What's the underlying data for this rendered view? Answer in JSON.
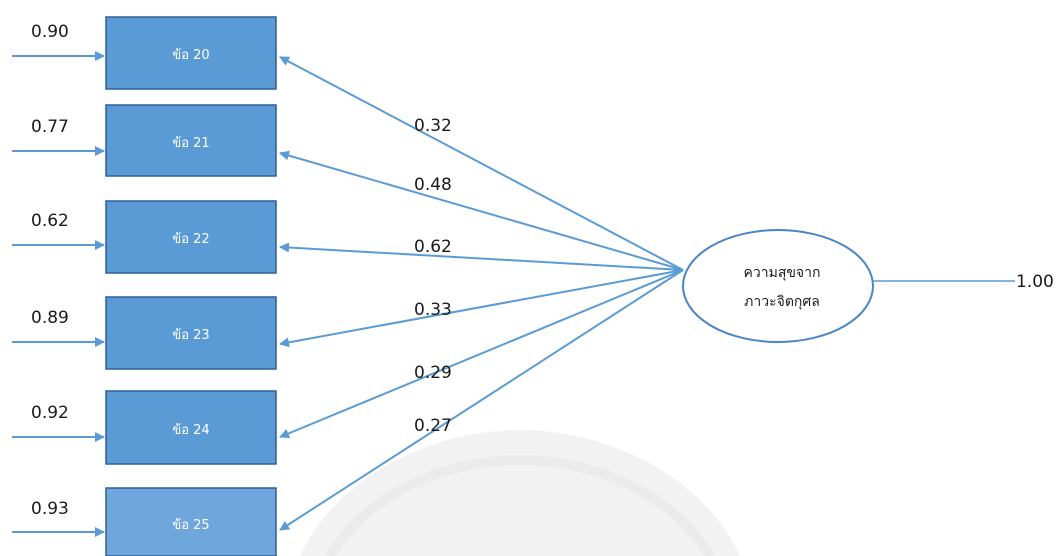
{
  "items": [
    {
      "label": "ข้อ 20",
      "error": "0.90",
      "loading": "0.32"
    },
    {
      "label": "ข้อ 21",
      "error": "0.77",
      "loading": "0.48"
    },
    {
      "label": "ข้อ 22",
      "error": "0.62",
      "loading": "0.62"
    },
    {
      "label": "ข้อ 23",
      "error": "0.89",
      "loading": "0.33"
    },
    {
      "label": "ข้อ 24",
      "error": "0.92",
      "loading": "0.29"
    },
    {
      "label": "ข้อ 25",
      "error": "0.93",
      "loading": "0.27"
    }
  ],
  "latent": {
    "line1": "ความสุขจาก",
    "line2": "ภาวะจิตกุศล",
    "variance": "1.00"
  },
  "colors": {
    "box_fill": "#5b9bd5",
    "box_fill_last": "#6fa7dc",
    "box_stroke": "#2e5f92",
    "arrow": "#5b9bd5",
    "ellipse_stroke": "#4a86c5"
  }
}
